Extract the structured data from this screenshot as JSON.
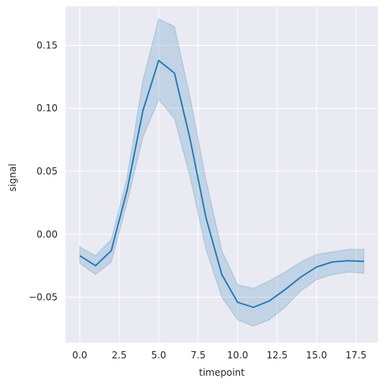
{
  "chart_data": {
    "type": "line",
    "title": "",
    "xlabel": "timepoint",
    "ylabel": "signal",
    "xlim": [
      -0.9,
      18.9
    ],
    "ylim": [
      -0.086,
      0.181
    ],
    "x_ticks": [
      0,
      2.5,
      5,
      7.5,
      10,
      12.5,
      15,
      17.5
    ],
    "x_tick_labels": [
      "0.0",
      "2.5",
      "5.0",
      "7.5",
      "10.0",
      "12.5",
      "15.0",
      "17.5"
    ],
    "y_ticks": [
      -0.05,
      0,
      0.05,
      0.1,
      0.15
    ],
    "y_tick_labels": [
      "−0.05",
      "0.00",
      "0.05",
      "0.10",
      "0.15"
    ],
    "grid": true,
    "colors": {
      "line": "#1f77b4",
      "band": "#1f77b4",
      "background": "#eaeaf2",
      "grid": "#ffffff"
    },
    "series": [
      {
        "x": [
          0,
          1,
          2,
          3,
          4,
          5,
          6,
          7,
          8,
          9,
          10,
          11,
          12,
          13,
          14,
          15,
          16,
          17,
          18
        ],
        "y": [
          -0.017,
          -0.025,
          -0.013,
          0.035,
          0.098,
          0.138,
          0.128,
          0.075,
          0.013,
          -0.032,
          -0.054,
          -0.058,
          -0.053,
          -0.044,
          -0.034,
          -0.026,
          -0.022,
          -0.021,
          -0.0215
        ],
        "ci_low": [
          -0.023,
          -0.032,
          -0.022,
          0.025,
          0.077,
          0.107,
          0.092,
          0.045,
          -0.012,
          -0.05,
          -0.068,
          -0.073,
          -0.068,
          -0.058,
          -0.045,
          -0.036,
          -0.032,
          -0.03,
          -0.031
        ],
        "ci_high": [
          -0.01,
          -0.017,
          -0.004,
          0.045,
          0.122,
          0.171,
          0.165,
          0.108,
          0.043,
          -0.013,
          -0.04,
          -0.043,
          -0.037,
          -0.03,
          -0.022,
          -0.016,
          -0.014,
          -0.012,
          -0.012
        ]
      }
    ]
  }
}
